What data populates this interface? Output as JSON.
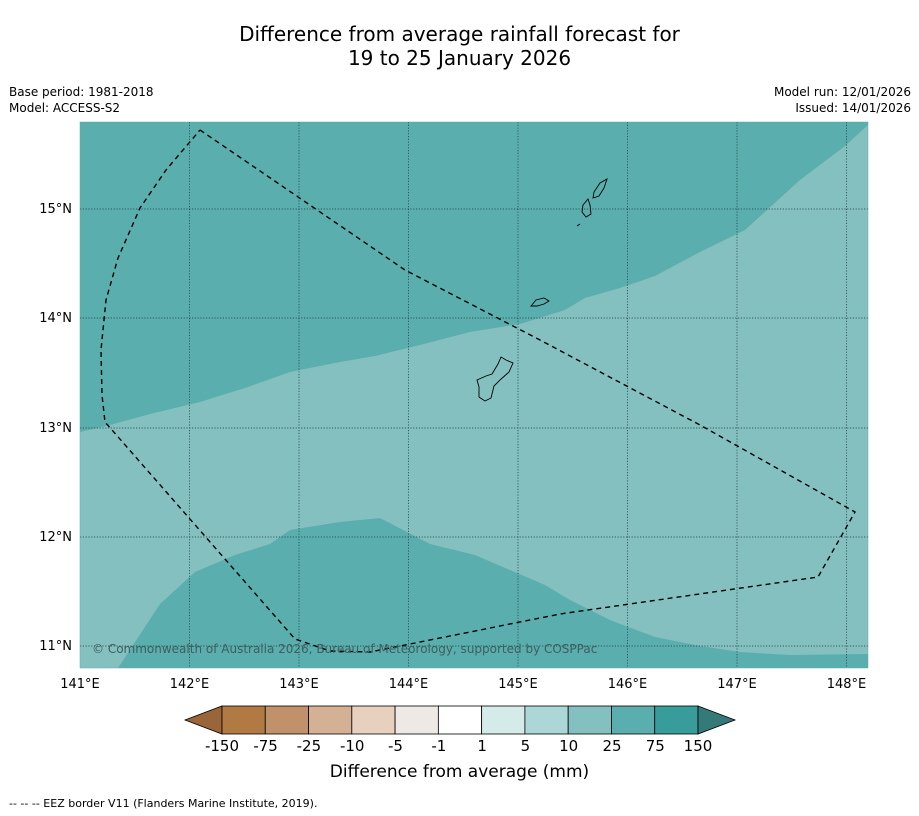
{
  "title": {
    "line1": "Difference from average rainfall forecast for",
    "line2": "19 to 25 January 2026"
  },
  "meta_left": {
    "base_period": "Base period: 1981-2018",
    "model": "Model: ACCESS-S2"
  },
  "meta_right": {
    "model_run": "Model run: 12/01/2026",
    "issued": "Issued: 14/01/2026"
  },
  "map": {
    "lon_ticks": [
      "141°E",
      "142°E",
      "143°E",
      "144°E",
      "145°E",
      "146°E",
      "147°E",
      "148°E"
    ],
    "lat_ticks": [
      "15°N",
      "14°N",
      "13°N",
      "12°N",
      "11°N"
    ],
    "copyright": "© Commonwealth of Australia 2026, Bureau of Meteorology, supported by COSPPac",
    "colors": {
      "band_10_25": "#84c0bf",
      "band_25_75": "#5baeae"
    }
  },
  "colorbar": {
    "labels": [
      "-150",
      "-75",
      "-25",
      "-10",
      "-5",
      "-1",
      "1",
      "5",
      "10",
      "25",
      "75",
      "150"
    ],
    "colors": [
      "#b07a42",
      "#c0916a",
      "#d4b094",
      "#e8d0bf",
      "#efe9e6",
      "#ffffff",
      "#d5ebea",
      "#acd7d6",
      "#84c0bf",
      "#5baeae",
      "#389c9a"
    ],
    "under_color": "#9a6538",
    "over_color": "#347a79",
    "title": "Difference from average (mm)"
  },
  "footnote": "--  --  -- EEZ border V11 (Flanders Marine Institute, 2019)."
}
